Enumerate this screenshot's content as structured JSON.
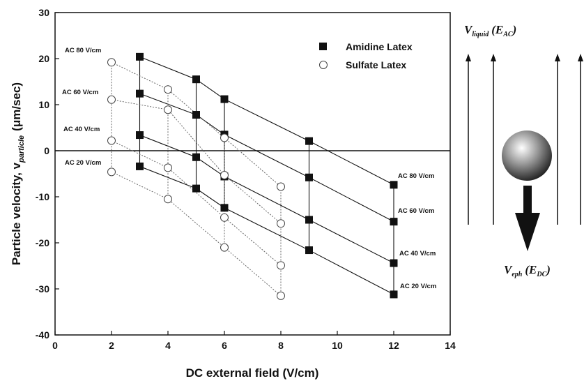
{
  "chart_data": {
    "type": "scatter",
    "xlabel": "DC external field (V/cm)",
    "ylabel_main": "Particle velocity, v",
    "ylabel_sub": "particle",
    "ylabel_unit": "(μm/sec)",
    "xlim": [
      0,
      14
    ],
    "ylim": [
      -40,
      30
    ],
    "x_ticks": [
      "0",
      "2",
      "4",
      "6",
      "8",
      "10",
      "12",
      "14"
    ],
    "y_ticks": [
      "-40",
      "-30",
      "-20",
      "-10",
      "0",
      "10",
      "20",
      "30"
    ],
    "grid": false,
    "legend_position": "top-right",
    "legend": [
      {
        "label": "Amidine Latex",
        "marker": "filled-square"
      },
      {
        "label": "Sulfate Latex",
        "marker": "open-circle"
      }
    ],
    "series": [
      {
        "name": "Amidine Latex",
        "marker": "filled-square",
        "fits": [
          {
            "ac": "AC 80 V/cm",
            "points": [
              [
                3,
                20.4
              ],
              [
                5,
                15.5
              ],
              [
                6,
                11.2
              ],
              [
                9,
                2.1
              ],
              [
                12,
                -7.4
              ]
            ]
          },
          {
            "ac": "AC 60 V/cm",
            "points": [
              [
                3,
                12.4
              ],
              [
                5,
                7.8
              ],
              [
                6,
                3.5
              ],
              [
                9,
                -5.8
              ],
              [
                12,
                -15.4
              ]
            ]
          },
          {
            "ac": "AC 40 V/cm",
            "points": [
              [
                3,
                3.4
              ],
              [
                5,
                -1.4
              ],
              [
                6,
                -5.6
              ],
              [
                9,
                -15.0
              ],
              [
                12,
                -24.4
              ]
            ]
          },
          {
            "ac": "AC 20 V/cm",
            "points": [
              [
                3,
                -3.4
              ],
              [
                5,
                -8.2
              ],
              [
                6,
                -12.4
              ],
              [
                9,
                -21.6
              ],
              [
                12,
                -31.2
              ]
            ]
          }
        ]
      },
      {
        "name": "Sulfate Latex",
        "marker": "open-circle",
        "fits": [
          {
            "ac": "AC 80 V/cm",
            "points": [
              [
                2,
                19.2
              ],
              [
                4,
                13.3
              ],
              [
                6,
                2.8
              ],
              [
                8,
                -7.8
              ]
            ]
          },
          {
            "ac": "AC 60 V/cm",
            "points": [
              [
                2,
                11.1
              ],
              [
                4,
                8.9
              ],
              [
                6,
                -5.3
              ],
              [
                8,
                -15.8
              ]
            ]
          },
          {
            "ac": "AC 40 V/cm",
            "points": [
              [
                2,
                2.2
              ],
              [
                4,
                -3.7
              ],
              [
                6,
                -14.5
              ],
              [
                8,
                -24.9
              ]
            ]
          },
          {
            "ac": "AC 20 V/cm",
            "points": [
              [
                2,
                -4.6
              ],
              [
                4,
                -10.5
              ],
              [
                6,
                -21.0
              ],
              [
                8,
                -31.5
              ]
            ]
          }
        ]
      }
    ],
    "left_annotations": [
      "AC 80 V/cm",
      "AC 60 V/cm",
      "AC 40 V/cm",
      "AC 20 V/cm"
    ],
    "right_annotations": [
      "AC 80 V/cm",
      "AC 60 V/cm",
      "AC 40 V/cm",
      "AC 20 V/cm"
    ]
  },
  "diagram": {
    "top_label_main": "V",
    "top_label_sub": "liquid",
    "top_label_field_open": "(E",
    "top_label_field_sub": "AC",
    "top_label_close": ")",
    "bottom_label_main": "V",
    "bottom_label_sub": "eph",
    "bottom_label_field_open": "(E",
    "bottom_label_field_sub": "DC",
    "bottom_label_close": ")"
  }
}
